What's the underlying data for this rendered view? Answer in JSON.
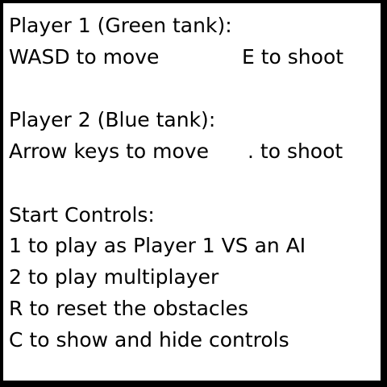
{
  "player1": {
    "heading": "Player 1 (Green tank):",
    "move": "WASD to move",
    "shoot": "E to shoot"
  },
  "player2": {
    "heading": "Player 2 (Blue tank):",
    "move": "Arrow keys to move",
    "shoot": ". to shoot"
  },
  "start_controls": {
    "heading": "Start Controls:",
    "items": [
      "1 to play as Player 1 VS an AI",
      "2 to play multiplayer",
      "R to reset the obstacles",
      "C to show and hide controls"
    ]
  },
  "colors": {
    "border": "#000000",
    "background": "#ffffff",
    "text": "#000000"
  }
}
